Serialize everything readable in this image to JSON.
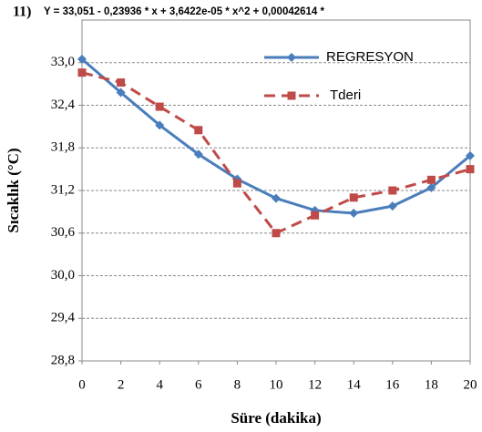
{
  "chart_data": {
    "type": "line",
    "label": "11)",
    "title": "Y = 33,051 - 0,23936 * x + 3,6422e-05 * x^2 + 0,00042614 *",
    "x_label": "Süre (dakika)",
    "y_label": "Sıcaklık (°C)",
    "x": [
      0,
      2,
      4,
      6,
      8,
      10,
      12,
      14,
      16,
      18,
      20
    ],
    "xlim": [
      0,
      20
    ],
    "xticks": [
      0,
      2,
      4,
      6,
      8,
      10,
      12,
      14,
      16,
      18,
      20
    ],
    "ylim": [
      28.8,
      33.6
    ],
    "yticks": [
      {
        "value": 28.8,
        "label": "28,8"
      },
      {
        "value": 29.4,
        "label": "29,4"
      },
      {
        "value": 30.0,
        "label": "30,0"
      },
      {
        "value": 30.6,
        "label": "30,6"
      },
      {
        "value": 31.2,
        "label": "31,2"
      },
      {
        "value": 31.8,
        "label": "31,8"
      },
      {
        "value": 32.4,
        "label": "32,4"
      },
      {
        "value": 33.0,
        "label": "33,0"
      }
    ],
    "grid": true,
    "legend": "top-right",
    "series": [
      {
        "name": "REGRESYON",
        "color": "#4a7ebb",
        "dashed": false,
        "marker": "diamond",
        "values": [
          33.05,
          32.58,
          32.12,
          31.71,
          31.36,
          31.09,
          30.92,
          30.88,
          30.98,
          31.24,
          31.69
        ]
      },
      {
        "name": "Tderi",
        "color": "#be4b48",
        "dashed": true,
        "marker": "square",
        "values": [
          32.86,
          32.72,
          32.38,
          32.05,
          31.3,
          30.6,
          30.85,
          31.1,
          31.2,
          31.35,
          31.5
        ]
      }
    ]
  }
}
